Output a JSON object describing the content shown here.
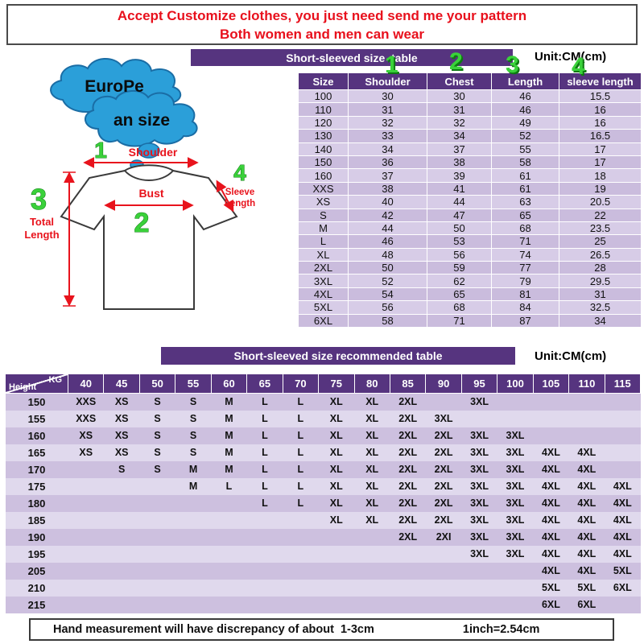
{
  "banner": {
    "line1": "Accept Customize clothes, you just need send me your pattern",
    "line2": "Both women and men can wear"
  },
  "size_table": {
    "title": "Short-sleeved size  table",
    "unit": "Unit:CM(cm)",
    "col_numbers": [
      "1",
      "2",
      "3",
      "4"
    ],
    "columns": [
      "Size",
      "Shoulder",
      "Chest",
      "Length",
      "sleeve length"
    ],
    "rows": [
      [
        "100",
        "30",
        "30",
        "46",
        "15.5"
      ],
      [
        "110",
        "31",
        "31",
        "46",
        "16"
      ],
      [
        "120",
        "32",
        "32",
        "49",
        "16"
      ],
      [
        "130",
        "33",
        "34",
        "52",
        "16.5"
      ],
      [
        "140",
        "34",
        "37",
        "55",
        "17"
      ],
      [
        "150",
        "36",
        "38",
        "58",
        "17"
      ],
      [
        "160",
        "37",
        "39",
        "61",
        "18"
      ],
      [
        "XXS",
        "38",
        "41",
        "61",
        "19"
      ],
      [
        "XS",
        "40",
        "44",
        "63",
        "20.5"
      ],
      [
        "S",
        "42",
        "47",
        "65",
        "22"
      ],
      [
        "M",
        "44",
        "50",
        "68",
        "23.5"
      ],
      [
        "L",
        "46",
        "53",
        "71",
        "25"
      ],
      [
        "XL",
        "48",
        "56",
        "74",
        "26.5"
      ],
      [
        "2XL",
        "50",
        "59",
        "77",
        "28"
      ],
      [
        "3XL",
        "52",
        "62",
        "79",
        "29.5"
      ],
      [
        "4XL",
        "54",
        "65",
        "81",
        "31"
      ],
      [
        "5XL",
        "56",
        "68",
        "84",
        "32.5"
      ],
      [
        "6XL",
        "58",
        "71",
        "87",
        "34"
      ]
    ]
  },
  "diagram": {
    "cloud_line1": "EuroPe",
    "cloud_line2": "an size",
    "shoulder_num": "1",
    "shoulder_label": "Shoulder",
    "bust_num": "2",
    "bust_label": "Bust",
    "length_num": "3",
    "length_label_1": "Total",
    "length_label_2": "Length",
    "sleeve_num": "4",
    "sleeve_label_1": "Sleeve",
    "sleeve_label_2": "Length"
  },
  "recommend_table": {
    "title": "Short-sleeved size recommended table",
    "unit": "Unit:CM(cm)",
    "corner_top": "KG",
    "corner_bottom": "Height",
    "kg_columns": [
      "40",
      "45",
      "50",
      "55",
      "60",
      "65",
      "70",
      "75",
      "80",
      "85",
      "90",
      "95",
      "100",
      "105",
      "110",
      "115"
    ],
    "rows": [
      {
        "height": "150",
        "cells": [
          "XXS",
          "XS",
          "S",
          "S",
          "M",
          "L",
          "L",
          "XL",
          "XL",
          "2XL",
          "",
          "3XL",
          "",
          "",
          "",
          ""
        ]
      },
      {
        "height": "155",
        "cells": [
          "XXS",
          "XS",
          "S",
          "S",
          "M",
          "L",
          "L",
          "XL",
          "XL",
          "2XL",
          "3XL",
          "",
          "",
          "",
          "",
          ""
        ]
      },
      {
        "height": "160",
        "cells": [
          "XS",
          "XS",
          "S",
          "S",
          "M",
          "L",
          "L",
          "XL",
          "XL",
          "2XL",
          "2XL",
          "3XL",
          "3XL",
          "",
          "",
          ""
        ]
      },
      {
        "height": "165",
        "cells": [
          "XS",
          "XS",
          "S",
          "S",
          "M",
          "L",
          "L",
          "XL",
          "XL",
          "2XL",
          "2XL",
          "3XL",
          "3XL",
          "4XL",
          "4XL",
          ""
        ]
      },
      {
        "height": "170",
        "cells": [
          "",
          "S",
          "S",
          "M",
          "M",
          "L",
          "L",
          "XL",
          "XL",
          "2XL",
          "2XL",
          "3XL",
          "3XL",
          "4XL",
          "4XL",
          ""
        ]
      },
      {
        "height": "175",
        "cells": [
          "",
          "",
          "",
          "M",
          "L",
          "L",
          "L",
          "XL",
          "XL",
          "2XL",
          "2XL",
          "3XL",
          "3XL",
          "4XL",
          "4XL",
          "4XL"
        ]
      },
      {
        "height": "180",
        "cells": [
          "",
          "",
          "",
          "",
          "",
          "L",
          "L",
          "XL",
          "XL",
          "2XL",
          "2XL",
          "3XL",
          "3XL",
          "4XL",
          "4XL",
          "4XL"
        ]
      },
      {
        "height": "185",
        "cells": [
          "",
          "",
          "",
          "",
          "",
          "",
          "",
          "XL",
          "XL",
          "2XL",
          "2XL",
          "3XL",
          "3XL",
          "4XL",
          "4XL",
          "4XL"
        ]
      },
      {
        "height": "190",
        "cells": [
          "",
          "",
          "",
          "",
          "",
          "",
          "",
          "",
          "",
          "2XL",
          "2XI",
          "3XL",
          "3XL",
          "4XL",
          "4XL",
          "4XL"
        ]
      },
      {
        "height": "195",
        "cells": [
          "",
          "",
          "",
          "",
          "",
          "",
          "",
          "",
          "",
          "",
          "",
          "3XL",
          "3XL",
          "4XL",
          "4XL",
          "4XL"
        ]
      },
      {
        "height": "205",
        "cells": [
          "",
          "",
          "",
          "",
          "",
          "",
          "",
          "",
          "",
          "",
          "",
          "",
          "",
          "4XL",
          "4XL",
          "5XL"
        ]
      },
      {
        "height": "210",
        "cells": [
          "",
          "",
          "",
          "",
          "",
          "",
          "",
          "",
          "",
          "",
          "",
          "",
          "",
          "5XL",
          "5XL",
          "6XL"
        ]
      },
      {
        "height": "215",
        "cells": [
          "",
          "",
          "",
          "",
          "",
          "",
          "",
          "",
          "",
          "",
          "",
          "",
          "",
          "6XL",
          "6XL",
          ""
        ]
      }
    ]
  },
  "footer": {
    "text1": "Hand measurement will have discrepancy of about  1-3cm",
    "text2": "1inch=2.54cm"
  }
}
